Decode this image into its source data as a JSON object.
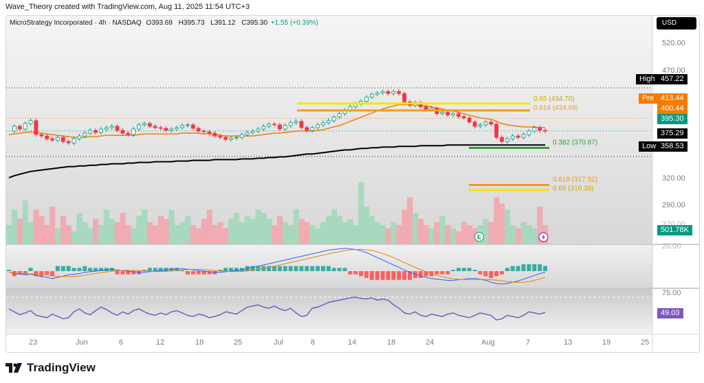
{
  "caption": "Wave_Theory created with TradingView.com, Aug 11, 2025 11:54 UTC+3",
  "symbol": {
    "name": "MicroStrategy Incorporated · 4h · NASDAQ",
    "o_label": "O",
    "o": "393.69",
    "h_label": "H",
    "h": "395.73",
    "l_label": "L",
    "l": "391.12",
    "c_label": "C",
    "c": "395.30",
    "change": "+1.55 (+0.39%)"
  },
  "currency_button": "USD",
  "price_tags": {
    "high_label": "High",
    "high": "457.22",
    "pre_label": "Pre",
    "pre": "413.44",
    "ema": "400.44",
    "last": "395.30",
    "sma": "375.29",
    "low_label": "Low",
    "low": "358.53",
    "volume": "501.78K",
    "macd": "20.00",
    "rsi_level": "75.00",
    "rsi": "49.03"
  },
  "colors": {
    "up": "#089981",
    "down": "#f23645",
    "ema": "#f57c00",
    "sma": "#000000",
    "fib_yellow": "#f5e600",
    "fib_orange": "#f59b1e",
    "fib_green": "#2e9e3c",
    "macd_line": "#2962ff",
    "signal_line": "#f57c00",
    "rsi_line": "#7e57c2"
  },
  "fib_labels": {
    "f650": "0.65 (434.70)",
    "f618": "0.618 (424.68)",
    "f382": "0.382 (370.87)",
    "f618b": "0.618 (317.52)",
    "f650b": "0.65 (310.39)"
  },
  "icons": {
    "earnings": "earnings-icon",
    "dividend": "lightning-event-icon"
  },
  "chart_data": {
    "type": "candlestick",
    "symbol": "MicroStrategy Incorporated",
    "interval": "4h",
    "exchange": "NASDAQ",
    "price_axis": {
      "ticks": [
        520.0,
        470.0,
        320.0,
        290.0,
        270.0
      ],
      "tick_labels": [
        "520.00",
        "470.00",
        "320.00",
        "290.00",
        "270.00"
      ],
      "range": [
        265,
        540
      ]
    },
    "x_axis": {
      "labels": [
        "23",
        "Jun",
        "6",
        "12",
        "18",
        "25",
        "Jul",
        "8",
        "14",
        "18",
        "24",
        "Aug",
        "7",
        "13",
        "19",
        "25"
      ]
    },
    "close": [
      395,
      402,
      398,
      406,
      410,
      390,
      388,
      384,
      382,
      386,
      380,
      378,
      384,
      388,
      392,
      396,
      393,
      398,
      400,
      402,
      396,
      392,
      390,
      398,
      404,
      406,
      402,
      400,
      399,
      396,
      398,
      400,
      403,
      404,
      399,
      395,
      394,
      392,
      388,
      386,
      383,
      385,
      386,
      390,
      393,
      395,
      398,
      402,
      405,
      404,
      398,
      403,
      407,
      409,
      400,
      396,
      400,
      404,
      407,
      410,
      415,
      420,
      425,
      430,
      434,
      438,
      444,
      448,
      450,
      452,
      449,
      452,
      449,
      437,
      432,
      436,
      430,
      426,
      428,
      420,
      422,
      418,
      420,
      416,
      414,
      408,
      402,
      404,
      408,
      405,
      386,
      380,
      384,
      388,
      386,
      390,
      395,
      400,
      396,
      395
    ],
    "series": [
      {
        "name": "EMA",
        "values": [
          390,
          391,
          392,
          393,
          394,
          393,
          392,
          391,
          390,
          389,
          388,
          387,
          386,
          386,
          386,
          387,
          387,
          388,
          389,
          389,
          389,
          389,
          389,
          389,
          390,
          391,
          391,
          391,
          391,
          391,
          391,
          391,
          392,
          392,
          392,
          392,
          391,
          391,
          390,
          389,
          388,
          388,
          388,
          388,
          388,
          388,
          389,
          390,
          391,
          392,
          392,
          393,
          394,
          395,
          395,
          395,
          395,
          396,
          397,
          399,
          401,
          403,
          406,
          409,
          412,
          415,
          418,
          421,
          424,
          427,
          429,
          431,
          433,
          433,
          433,
          433,
          432,
          431,
          430,
          428,
          427,
          425,
          424,
          422,
          420,
          418,
          416,
          414,
          413,
          412,
          409,
          406,
          404,
          403,
          402,
          401,
          401,
          401,
          400,
          400
        ]
      },
      {
        "name": "SMA",
        "values": [
          328,
          331,
          333,
          335,
          337,
          338,
          339,
          340,
          341,
          342,
          343,
          344,
          344,
          345,
          345,
          346,
          346,
          347,
          347,
          348,
          348,
          348,
          349,
          349,
          350,
          350,
          350,
          351,
          351,
          351,
          351,
          352,
          352,
          352,
          353,
          353,
          353,
          353,
          354,
          354,
          354,
          354,
          354,
          355,
          355,
          355,
          356,
          356,
          357,
          357,
          358,
          358,
          359,
          360,
          361,
          362,
          362,
          363,
          364,
          365,
          366,
          367,
          368,
          368,
          369,
          370,
          370,
          371,
          371,
          372,
          372,
          372,
          373,
          373,
          373,
          373,
          374,
          374,
          374,
          374,
          374,
          375,
          375,
          375,
          375,
          375,
          375,
          375,
          375,
          375,
          375,
          375,
          375,
          375,
          375,
          375,
          375,
          375,
          375,
          375
        ]
      }
    ],
    "volume": [
      0.3,
      0.55,
      0.4,
      0.7,
      0.35,
      0.55,
      0.45,
      0.3,
      0.6,
      0.25,
      0.45,
      0.3,
      0.2,
      0.5,
      0.35,
      0.25,
      0.4,
      0.3,
      0.55,
      0.4,
      0.35,
      0.5,
      0.3,
      0.25,
      0.45,
      0.55,
      0.35,
      0.3,
      0.45,
      0.4,
      0.55,
      0.3,
      0.35,
      0.45,
      0.3,
      0.25,
      0.4,
      0.55,
      0.3,
      0.35,
      0.25,
      0.4,
      0.5,
      0.35,
      0.45,
      0.4,
      0.55,
      0.5,
      0.4,
      0.3,
      0.45,
      0.35,
      0.3,
      0.55,
      0.4,
      0.35,
      0.3,
      0.25,
      0.35,
      0.45,
      0.55,
      0.45,
      0.35,
      0.4,
      0.3,
      1.0,
      0.6,
      0.45,
      0.35,
      0.3,
      0.25,
      0.35,
      0.3,
      0.55,
      0.75,
      0.5,
      0.4,
      0.3,
      0.25,
      0.35,
      0.45,
      0.3,
      0.25,
      0.2,
      0.35,
      0.3,
      0.25,
      0.3,
      0.4,
      0.35,
      0.75,
      0.65,
      0.55,
      0.3,
      0.25,
      0.35,
      0.3,
      0.25,
      0.6,
      0.3
    ],
    "macd": [
      -0.2,
      -0.4,
      -0.5,
      -0.6,
      -0.5,
      -0.7,
      -0.9,
      -1.0,
      -1.2,
      -1.0,
      -0.8,
      -0.6,
      -0.5,
      -0.4,
      -0.2,
      -0.1,
      0.0,
      0.1,
      0.2,
      0.3,
      0.2,
      0.1,
      0.0,
      -0.1,
      -0.2,
      -0.2,
      -0.1,
      0.0,
      0.1,
      0.2,
      0.3,
      0.4,
      0.4,
      0.3,
      0.2,
      0.1,
      0.0,
      -0.1,
      -0.2,
      -0.2,
      -0.1,
      0.0,
      0.1,
      0.2,
      0.4,
      0.6,
      0.8,
      1.0,
      1.2,
      1.4,
      1.6,
      1.8,
      2.0,
      2.2,
      2.4,
      2.6,
      2.8,
      3.0,
      3.2,
      3.4,
      3.5,
      3.6,
      3.7,
      3.6,
      3.5,
      3.3,
      3.0,
      2.6,
      2.2,
      1.8,
      1.4,
      1.0,
      0.6,
      0.2,
      -0.2,
      -0.5,
      -0.8,
      -1.0,
      -1.2,
      -1.3,
      -1.4,
      -1.5,
      -1.5,
      -1.4,
      -1.3,
      -1.2,
      -1.2,
      -1.3,
      -1.5,
      -1.8,
      -2.0,
      -2.1,
      -2.0,
      -1.8,
      -1.6,
      -1.3,
      -1.0,
      -0.7,
      -0.4,
      -0.2
    ],
    "rsi_values": [
      55,
      50,
      45,
      48,
      52,
      44,
      42,
      40,
      46,
      42,
      38,
      40,
      50,
      55,
      48,
      45,
      52,
      58,
      54,
      48,
      44,
      50,
      46,
      52,
      55,
      50,
      46,
      44,
      48,
      45,
      50,
      52,
      48,
      44,
      42,
      46,
      44,
      40,
      42,
      45,
      50,
      48,
      46,
      52,
      58,
      60,
      62,
      58,
      56,
      60,
      55,
      52,
      56,
      48,
      42,
      44,
      56,
      58,
      62,
      66,
      68,
      70,
      72,
      74,
      75,
      73,
      72,
      74,
      70,
      72,
      70,
      62,
      56,
      48,
      46,
      50,
      44,
      42,
      46,
      44,
      42,
      46,
      48,
      44,
      42,
      40,
      44,
      48,
      46,
      44,
      36,
      38,
      44,
      42,
      40,
      44,
      50,
      48,
      46,
      49
    ]
  }
}
